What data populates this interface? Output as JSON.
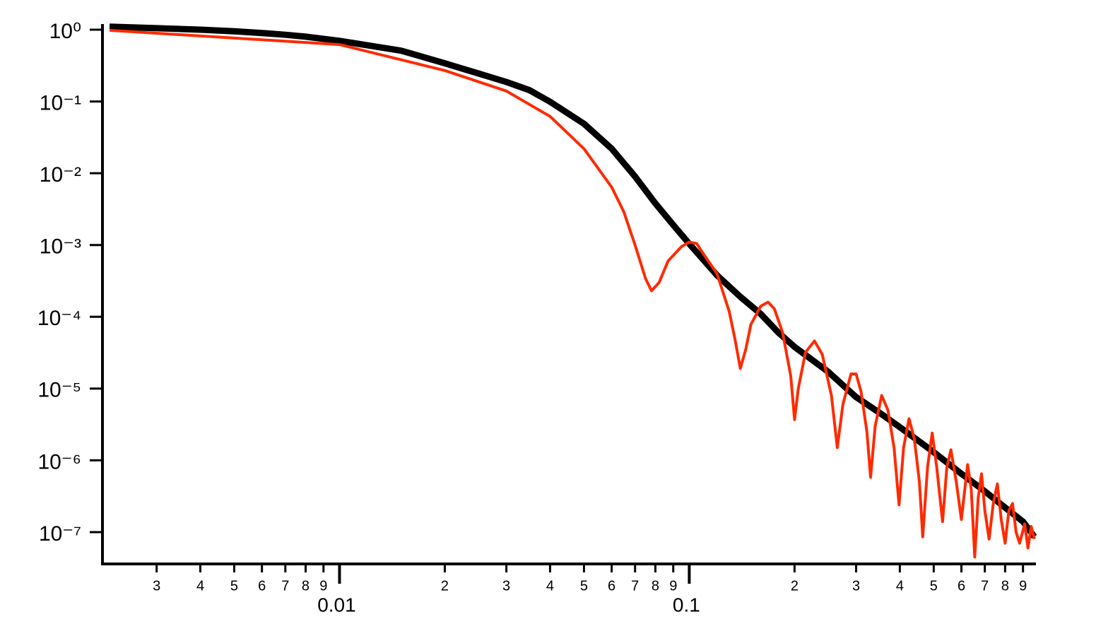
{
  "chart_data": {
    "type": "line",
    "xscale": "log",
    "yscale": "log",
    "xlim": [
      0.0021,
      0.98
    ],
    "ylim": [
      3.6e-08,
      1.2
    ],
    "xticks": [
      {
        "value": 0.003,
        "label": "3"
      },
      {
        "value": 0.004,
        "label": "4"
      },
      {
        "value": 0.005,
        "label": "5"
      },
      {
        "value": 0.006,
        "label": "6"
      },
      {
        "value": 0.007,
        "label": "7"
      },
      {
        "value": 0.008,
        "label": "8"
      },
      {
        "value": 0.009,
        "label": "9"
      },
      0.01,
      {
        "value": 0.02,
        "label": "2"
      },
      {
        "value": 0.03,
        "label": "3"
      },
      {
        "value": 0.04,
        "label": "4"
      },
      {
        "value": 0.05,
        "label": "5"
      },
      {
        "value": 0.06,
        "label": "6"
      },
      {
        "value": 0.07,
        "label": "7"
      },
      {
        "value": 0.08,
        "label": "8"
      },
      {
        "value": 0.09,
        "label": "9"
      },
      0.1,
      {
        "value": 0.2,
        "label": "2"
      },
      {
        "value": 0.3,
        "label": "3"
      },
      {
        "value": 0.4,
        "label": "4"
      },
      {
        "value": 0.5,
        "label": "5"
      },
      {
        "value": 0.6,
        "label": "6"
      },
      {
        "value": 0.7,
        "label": "7"
      },
      {
        "value": 0.8,
        "label": "8"
      },
      {
        "value": 0.9,
        "label": "9"
      }
    ],
    "yticks": [
      {
        "value": 1,
        "label": "10⁰"
      },
      {
        "value": 0.1,
        "label": "10⁻¹"
      },
      {
        "value": 0.01,
        "label": "10⁻²"
      },
      {
        "value": 0.001,
        "label": "10⁻³"
      },
      {
        "value": 0.0001,
        "label": "10⁻⁴"
      },
      {
        "value": 1e-05,
        "label": "10⁻⁵"
      },
      {
        "value": 1e-06,
        "label": "10⁻⁶"
      },
      {
        "value": 1e-07,
        "label": "10⁻⁷"
      }
    ],
    "series": [
      {
        "color": "#000000",
        "width": 9,
        "x": [
          0.0022,
          0.003,
          0.004,
          0.005,
          0.006,
          0.007,
          0.008,
          0.01,
          0.015,
          0.02,
          0.025,
          0.03,
          0.035,
          0.04,
          0.05,
          0.06,
          0.07,
          0.08,
          0.09,
          0.1,
          0.12,
          0.14,
          0.16,
          0.18,
          0.2,
          0.25,
          0.3,
          0.35,
          0.4,
          0.5,
          0.6,
          0.7,
          0.8,
          0.9,
          0.97
        ],
        "values": [
          1.1,
          1.05,
          1.0,
          0.95,
          0.9,
          0.85,
          0.8,
          0.7,
          0.51,
          0.34,
          0.245,
          0.187,
          0.143,
          0.099,
          0.049,
          0.022,
          0.009,
          0.0038,
          0.0019,
          0.00104,
          0.00038,
          0.00019,
          0.00011,
          6e-05,
          3.8e-05,
          1.7e-05,
          7.6e-06,
          4.6e-06,
          2.9e-06,
          1.3e-06,
          6.5e-07,
          3.7e-07,
          2.2e-07,
          1.4e-07,
          8.6e-08
        ]
      },
      {
        "color": "#ff2a00",
        "width": 4,
        "x": [
          0.0022,
          0.01,
          0.02,
          0.03,
          0.04,
          0.05,
          0.06,
          0.065,
          0.07,
          0.075,
          0.078,
          0.082,
          0.087,
          0.095,
          0.1,
          0.105,
          0.11,
          0.12,
          0.13,
          0.135,
          0.14,
          0.145,
          0.15,
          0.16,
          0.168,
          0.175,
          0.185,
          0.195,
          0.2,
          0.205,
          0.215,
          0.228,
          0.24,
          0.255,
          0.265,
          0.275,
          0.29,
          0.3,
          0.31,
          0.322,
          0.33,
          0.34,
          0.355,
          0.37,
          0.385,
          0.398,
          0.41,
          0.425,
          0.44,
          0.455,
          0.465,
          0.48,
          0.495,
          0.51,
          0.53,
          0.545,
          0.56,
          0.58,
          0.6,
          0.625,
          0.64,
          0.655,
          0.67,
          0.685,
          0.7,
          0.72,
          0.74,
          0.76,
          0.78,
          0.8,
          0.82,
          0.84,
          0.86,
          0.88,
          0.91,
          0.93,
          0.95,
          0.97
        ],
        "values": [
          0.98,
          0.62,
          0.27,
          0.14,
          0.062,
          0.022,
          0.0064,
          0.0029,
          0.001,
          0.00034,
          0.00023,
          0.0003,
          0.0006,
          0.00095,
          0.0011,
          0.00105,
          0.00074,
          0.0004,
          0.00012,
          5e-05,
          1.9e-05,
          3.5e-05,
          7.8e-05,
          0.00014,
          0.00016,
          0.00013,
          6e-05,
          1.5e-05,
          3.7e-06,
          1e-05,
          3.2e-05,
          4.6e-05,
          3e-05,
          8e-06,
          1.5e-06,
          6e-06,
          1.6e-05,
          1.6e-05,
          9e-06,
          2.5e-06,
          5.8e-07,
          3e-06,
          8e-06,
          5e-06,
          1.5e-06,
          2.4e-07,
          1.5e-06,
          3.8e-06,
          2e-06,
          5e-07,
          8.6e-08,
          8e-07,
          2.4e-06,
          8e-07,
          1.4e-07,
          8e-07,
          1.4e-06,
          5e-07,
          1.5e-07,
          8.7e-07,
          4e-07,
          4.5e-08,
          3e-07,
          6.5e-07,
          2e-07,
          8e-08,
          2.5e-07,
          4.7e-07,
          1.5e-07,
          7e-08,
          2e-07,
          2.5e-07,
          1e-07,
          7e-08,
          1.3e-07,
          6e-08,
          1.2e-07,
          8e-08
        ]
      }
    ]
  }
}
